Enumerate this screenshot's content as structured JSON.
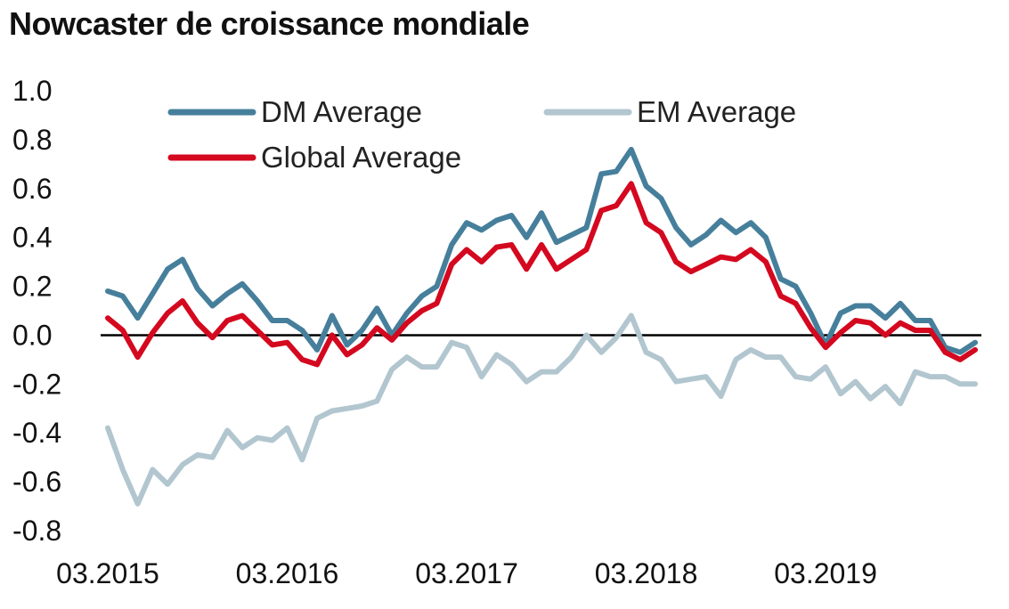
{
  "chart_data": {
    "type": "line",
    "title": "Nowcaster de croissance mondiale",
    "xlabel": "",
    "ylabel": "",
    "ylim": [
      -0.8,
      1.0
    ],
    "yticks": [
      "1.0",
      "0.8",
      "0.6",
      "0.4",
      "0.2",
      "0.0",
      "-0.2",
      "-0.4",
      "-0.6",
      "-0.8"
    ],
    "xtick_labels": [
      "03.2015",
      "03.2016",
      "03.2017",
      "03.2018",
      "03.2019"
    ],
    "x_start": "2015-03",
    "frequency": "monthly",
    "zero_line": true,
    "grid": false,
    "legend_position": "top",
    "series": [
      {
        "name": "DM Average",
        "color": "#467f9b",
        "values": [
          0.18,
          0.16,
          0.07,
          0.17,
          0.27,
          0.31,
          0.19,
          0.12,
          0.17,
          0.21,
          0.14,
          0.06,
          0.06,
          0.02,
          -0.06,
          0.08,
          -0.04,
          0.02,
          0.11,
          0.0,
          0.09,
          0.16,
          0.2,
          0.37,
          0.46,
          0.43,
          0.47,
          0.49,
          0.4,
          0.5,
          0.38,
          0.41,
          0.44,
          0.66,
          0.67,
          0.76,
          0.61,
          0.56,
          0.44,
          0.37,
          0.41,
          0.47,
          0.42,
          0.46,
          0.4,
          0.23,
          0.2,
          0.09,
          -0.04,
          0.09,
          0.12,
          0.12,
          0.07,
          0.13,
          0.06,
          0.06,
          -0.05,
          -0.07,
          -0.03
        ]
      },
      {
        "name": "EM Average",
        "color": "#b2c6cf",
        "values": [
          -0.38,
          -0.55,
          -0.69,
          -0.55,
          -0.61,
          -0.53,
          -0.49,
          -0.5,
          -0.39,
          -0.46,
          -0.42,
          -0.43,
          -0.38,
          -0.51,
          -0.34,
          -0.31,
          -0.3,
          -0.29,
          -0.27,
          -0.14,
          -0.09,
          -0.13,
          -0.13,
          -0.03,
          -0.05,
          -0.17,
          -0.08,
          -0.12,
          -0.19,
          -0.15,
          -0.15,
          -0.09,
          0.0,
          -0.07,
          -0.01,
          0.08,
          -0.07,
          -0.1,
          -0.19,
          -0.18,
          -0.17,
          -0.25,
          -0.1,
          -0.06,
          -0.09,
          -0.09,
          -0.17,
          -0.18,
          -0.13,
          -0.24,
          -0.19,
          -0.26,
          -0.21,
          -0.28,
          -0.15,
          -0.17,
          -0.17,
          -0.2,
          -0.2
        ]
      },
      {
        "name": "Global Average",
        "color": "#d4081f",
        "values": [
          0.07,
          0.02,
          -0.09,
          0.01,
          0.09,
          0.14,
          0.05,
          -0.01,
          0.06,
          0.08,
          0.02,
          -0.04,
          -0.03,
          -0.1,
          -0.12,
          0.0,
          -0.08,
          -0.04,
          0.03,
          -0.02,
          0.05,
          0.1,
          0.13,
          0.29,
          0.35,
          0.3,
          0.36,
          0.37,
          0.27,
          0.37,
          0.27,
          0.31,
          0.35,
          0.51,
          0.53,
          0.62,
          0.46,
          0.42,
          0.3,
          0.26,
          0.29,
          0.32,
          0.31,
          0.35,
          0.3,
          0.16,
          0.13,
          0.03,
          -0.05,
          0.01,
          0.06,
          0.05,
          0.0,
          0.05,
          0.02,
          0.02,
          -0.07,
          -0.1,
          -0.06
        ]
      }
    ]
  }
}
